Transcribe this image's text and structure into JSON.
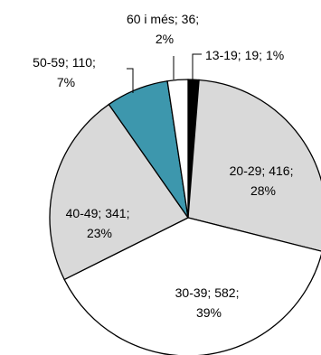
{
  "chart_data": {
    "type": "pie",
    "title": "",
    "slices": [
      {
        "category": "13-19",
        "value": 19,
        "percent": "1%",
        "color": "#000000"
      },
      {
        "category": "20-29",
        "value": 416,
        "percent": "28%",
        "color": "#d9d9d9"
      },
      {
        "category": "30-39",
        "value": 582,
        "percent": "39%",
        "color": "#ffffff"
      },
      {
        "category": "40-49",
        "value": 341,
        "percent": "23%",
        "color": "#d9d9d9"
      },
      {
        "category": "50-59",
        "value": 110,
        "percent": "7%",
        "color": "#3d97ad"
      },
      {
        "category": "60 i més",
        "value": 36,
        "percent": "2%",
        "color": "#ffffff"
      }
    ],
    "data_labels": [
      {
        "line1": "13-19; 19; 1%",
        "line2": ""
      },
      {
        "line1": "20-29; 416;",
        "line2": "28%"
      },
      {
        "line1": "30-39; 582;",
        "line2": "39%"
      },
      {
        "line1": "40-49; 341;",
        "line2": "23%"
      },
      {
        "line1": "50-59; 110;",
        "line2": "7%"
      },
      {
        "line1": "60 i més; 36;",
        "line2": "2%"
      }
    ],
    "start_angle_deg": 0,
    "direction": "clockwise",
    "stroke_color": "#000000",
    "legend": "none"
  }
}
